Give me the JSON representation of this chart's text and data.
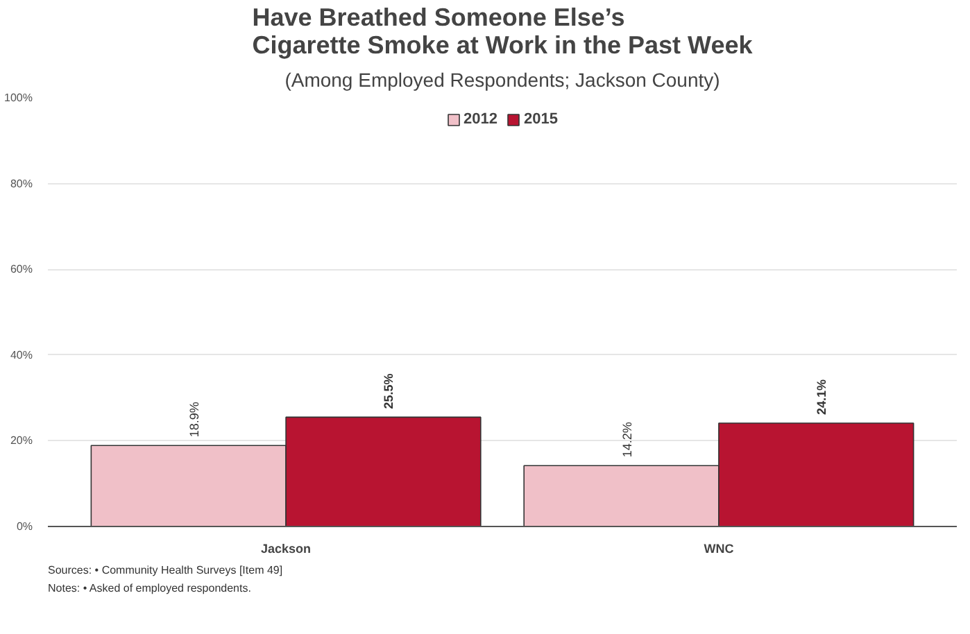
{
  "chart_data": {
    "type": "bar",
    "title": "Have Breathed Someone Else’s\nCigarette Smoke at Work in the Past Week",
    "subtitle": "(Among Employed Respondents; Jackson County)",
    "categories": [
      "Jackson",
      "WNC"
    ],
    "series": [
      {
        "name": "2012",
        "color": "#f0c0c8",
        "values": [
          18.9,
          14.2
        ],
        "value_labels": [
          "18.9%",
          "14.2%"
        ]
      },
      {
        "name": "2015",
        "color": "#b81431",
        "values": [
          25.5,
          24.1
        ],
        "value_labels": [
          "25.5%",
          "24.1%"
        ]
      }
    ],
    "ylim": [
      0,
      100
    ],
    "yticks": [
      {
        "value": 0,
        "label": "0%"
      },
      {
        "value": 20,
        "label": "20%"
      },
      {
        "value": 40,
        "label": "40%"
      },
      {
        "value": 60,
        "label": "60%"
      },
      {
        "value": 80,
        "label": "80%"
      },
      {
        "value": 100,
        "label": "100%"
      }
    ],
    "grid": "y",
    "legend": "top",
    "annotations": [
      "Sources:  • Community Health Surveys [Item 49]",
      "Notes:      • Asked of employed respondents."
    ]
  }
}
